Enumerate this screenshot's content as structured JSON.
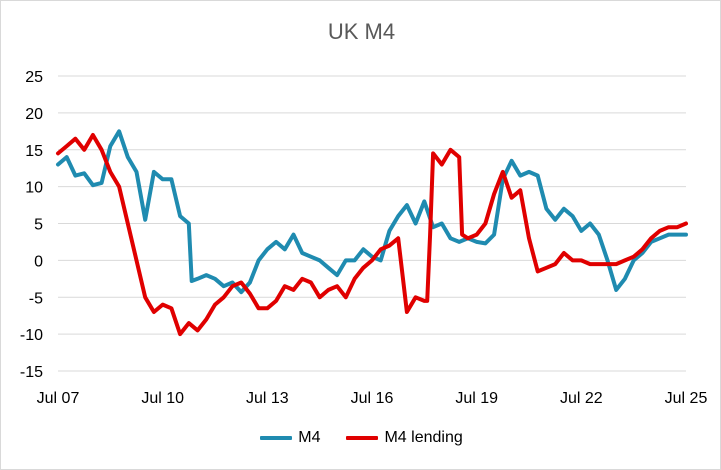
{
  "chart_data": {
    "type": "line",
    "title": "UK M4",
    "xlabel": "",
    "ylabel": "",
    "x_start": "Jul 07",
    "x_end": "Jul 25",
    "x_ticks": [
      "Jul 07",
      "Jul 10",
      "Jul 13",
      "Jul 16",
      "Jul 19",
      "Jul 22",
      "Jul 25"
    ],
    "y_ticks": [
      25,
      20,
      15,
      10,
      5,
      0,
      -5,
      -10,
      -15
    ],
    "ylim": [
      -15,
      25
    ],
    "grid": true,
    "legend_position": "bottom",
    "series": [
      {
        "name": "M4",
        "color": "#1f8bb0",
        "points": [
          [
            "Jul 07",
            13
          ],
          [
            "Oct 07",
            14
          ],
          [
            "Jan 08",
            11.5
          ],
          [
            "Apr 08",
            11.8
          ],
          [
            "Jul 08",
            10.2
          ],
          [
            "Oct 08",
            10.5
          ],
          [
            "Jan 09",
            15.5
          ],
          [
            "Apr 09",
            17.5
          ],
          [
            "Jul 09",
            14
          ],
          [
            "Oct 09",
            12
          ],
          [
            "Jan 10",
            5.5
          ],
          [
            "Apr 10",
            12
          ],
          [
            "Jul 10",
            11
          ],
          [
            "Oct 10",
            11
          ],
          [
            "Jan 11",
            6
          ],
          [
            "Apr 11",
            5
          ],
          [
            "May 11",
            -2.8
          ],
          [
            "Jul 11",
            -2.5
          ],
          [
            "Oct 11",
            -2
          ],
          [
            "Jan 12",
            -2.5
          ],
          [
            "Apr 12",
            -3.5
          ],
          [
            "Jul 12",
            -3
          ],
          [
            "Oct 12",
            -4.3
          ],
          [
            "Jan 13",
            -3
          ],
          [
            "Apr 13",
            0
          ],
          [
            "Jul 13",
            1.5
          ],
          [
            "Oct 13",
            2.5
          ],
          [
            "Jan 14",
            1.5
          ],
          [
            "Apr 14",
            3.5
          ],
          [
            "Jul 14",
            1
          ],
          [
            "Oct 14",
            0.5
          ],
          [
            "Jan 15",
            0
          ],
          [
            "Apr 15",
            -1
          ],
          [
            "Jul 15",
            -2
          ],
          [
            "Oct 15",
            0
          ],
          [
            "Jan 16",
            0
          ],
          [
            "Apr 16",
            1.5
          ],
          [
            "Jul 16",
            0.5
          ],
          [
            "Oct 16",
            0
          ],
          [
            "Jan 17",
            4
          ],
          [
            "Apr 17",
            6
          ],
          [
            "Jul 17",
            7.5
          ],
          [
            "Oct 17",
            5
          ],
          [
            "Jan 18",
            8
          ],
          [
            "Apr 18",
            4.5
          ],
          [
            "Jul 18",
            5
          ],
          [
            "Oct 18",
            3
          ],
          [
            "Jan 19",
            2.5
          ],
          [
            "Apr 19",
            3
          ],
          [
            "Jul 19",
            2.5
          ],
          [
            "Oct 19",
            2.3
          ],
          [
            "Jan 20",
            3.5
          ],
          [
            "Apr 20",
            11
          ],
          [
            "Jul 20",
            13.5
          ],
          [
            "Oct 20",
            11.5
          ],
          [
            "Jan 21",
            12
          ],
          [
            "Apr 21",
            11.5
          ],
          [
            "Jul 21",
            7
          ],
          [
            "Oct 21",
            5.5
          ],
          [
            "Jan 22",
            7
          ],
          [
            "Apr 22",
            6
          ],
          [
            "Jul 22",
            4
          ],
          [
            "Oct 22",
            5
          ],
          [
            "Jan 23",
            3.5
          ],
          [
            "Apr 23",
            0
          ],
          [
            "Jul 23",
            -4
          ],
          [
            "Oct 23",
            -2.5
          ],
          [
            "Jan 24",
            0
          ],
          [
            "Apr 24",
            1
          ],
          [
            "Jul 24",
            2.5
          ],
          [
            "Oct 24",
            3
          ],
          [
            "Jan 25",
            3.5
          ],
          [
            "Apr 25",
            3.5
          ],
          [
            "Jul 25",
            3.5
          ]
        ]
      },
      {
        "name": "M4 lending",
        "color": "#e00000",
        "points": [
          [
            "Jul 07",
            14.5
          ],
          [
            "Oct 07",
            15.5
          ],
          [
            "Jan 08",
            16.5
          ],
          [
            "Apr 08",
            15
          ],
          [
            "Jul 08",
            17
          ],
          [
            "Oct 08",
            15
          ],
          [
            "Jan 09",
            12
          ],
          [
            "Apr 09",
            10
          ],
          [
            "Jul 09",
            5
          ],
          [
            "Oct 09",
            0
          ],
          [
            "Jan 10",
            -5
          ],
          [
            "Apr 10",
            -7
          ],
          [
            "Jul 10",
            -6
          ],
          [
            "Oct 10",
            -6.5
          ],
          [
            "Jan 11",
            -10
          ],
          [
            "Apr 11",
            -8.5
          ],
          [
            "Jul 11",
            -9.5
          ],
          [
            "Oct 11",
            -8
          ],
          [
            "Jan 12",
            -6
          ],
          [
            "Apr 12",
            -5
          ],
          [
            "Jul 12",
            -3.5
          ],
          [
            "Oct 12",
            -3
          ],
          [
            "Jan 13",
            -4.5
          ],
          [
            "Apr 13",
            -6.5
          ],
          [
            "Jul 13",
            -6.5
          ],
          [
            "Oct 13",
            -5.5
          ],
          [
            "Jan 14",
            -3.5
          ],
          [
            "Apr 14",
            -4
          ],
          [
            "Jul 14",
            -2.5
          ],
          [
            "Oct 14",
            -3
          ],
          [
            "Jan 15",
            -5
          ],
          [
            "Apr 15",
            -4
          ],
          [
            "Jul 15",
            -3.5
          ],
          [
            "Oct 15",
            -5
          ],
          [
            "Jan 16",
            -2.5
          ],
          [
            "Apr 16",
            -1
          ],
          [
            "Jul 16",
            0
          ],
          [
            "Oct 16",
            1.5
          ],
          [
            "Jan 17",
            2
          ],
          [
            "Apr 17",
            3
          ],
          [
            "Jul 17",
            -7
          ],
          [
            "Oct 17",
            -5
          ],
          [
            "Jan 18",
            -5.5
          ],
          [
            "Feb 18",
            -5.5
          ],
          [
            "Mar 18",
            3.5
          ],
          [
            "Apr 18",
            14.5
          ],
          [
            "Jul 18",
            13
          ],
          [
            "Oct 18",
            15
          ],
          [
            "Jan 19",
            14
          ],
          [
            "Feb 19",
            3.5
          ],
          [
            "Apr 19",
            3
          ],
          [
            "Jul 19",
            3.5
          ],
          [
            "Oct 19",
            5
          ],
          [
            "Jan 20",
            9
          ],
          [
            "Apr 20",
            12
          ],
          [
            "Jul 20",
            8.5
          ],
          [
            "Oct 20",
            9.5
          ],
          [
            "Jan 21",
            3
          ],
          [
            "Apr 21",
            -1.5
          ],
          [
            "Jul 21",
            -1
          ],
          [
            "Oct 21",
            -0.5
          ],
          [
            "Jan 22",
            1
          ],
          [
            "Apr 22",
            0
          ],
          [
            "Jul 22",
            0
          ],
          [
            "Oct 22",
            -0.5
          ],
          [
            "Jan 23",
            -0.5
          ],
          [
            "Apr 23",
            -0.5
          ],
          [
            "Jul 23",
            -0.5
          ],
          [
            "Oct 23",
            0
          ],
          [
            "Jan 24",
            0.5
          ],
          [
            "Apr 24",
            1.5
          ],
          [
            "Jul 24",
            3
          ],
          [
            "Oct 24",
            4
          ],
          [
            "Jan 25",
            4.5
          ],
          [
            "Apr 25",
            4.5
          ],
          [
            "Jul 25",
            5
          ]
        ]
      }
    ]
  }
}
